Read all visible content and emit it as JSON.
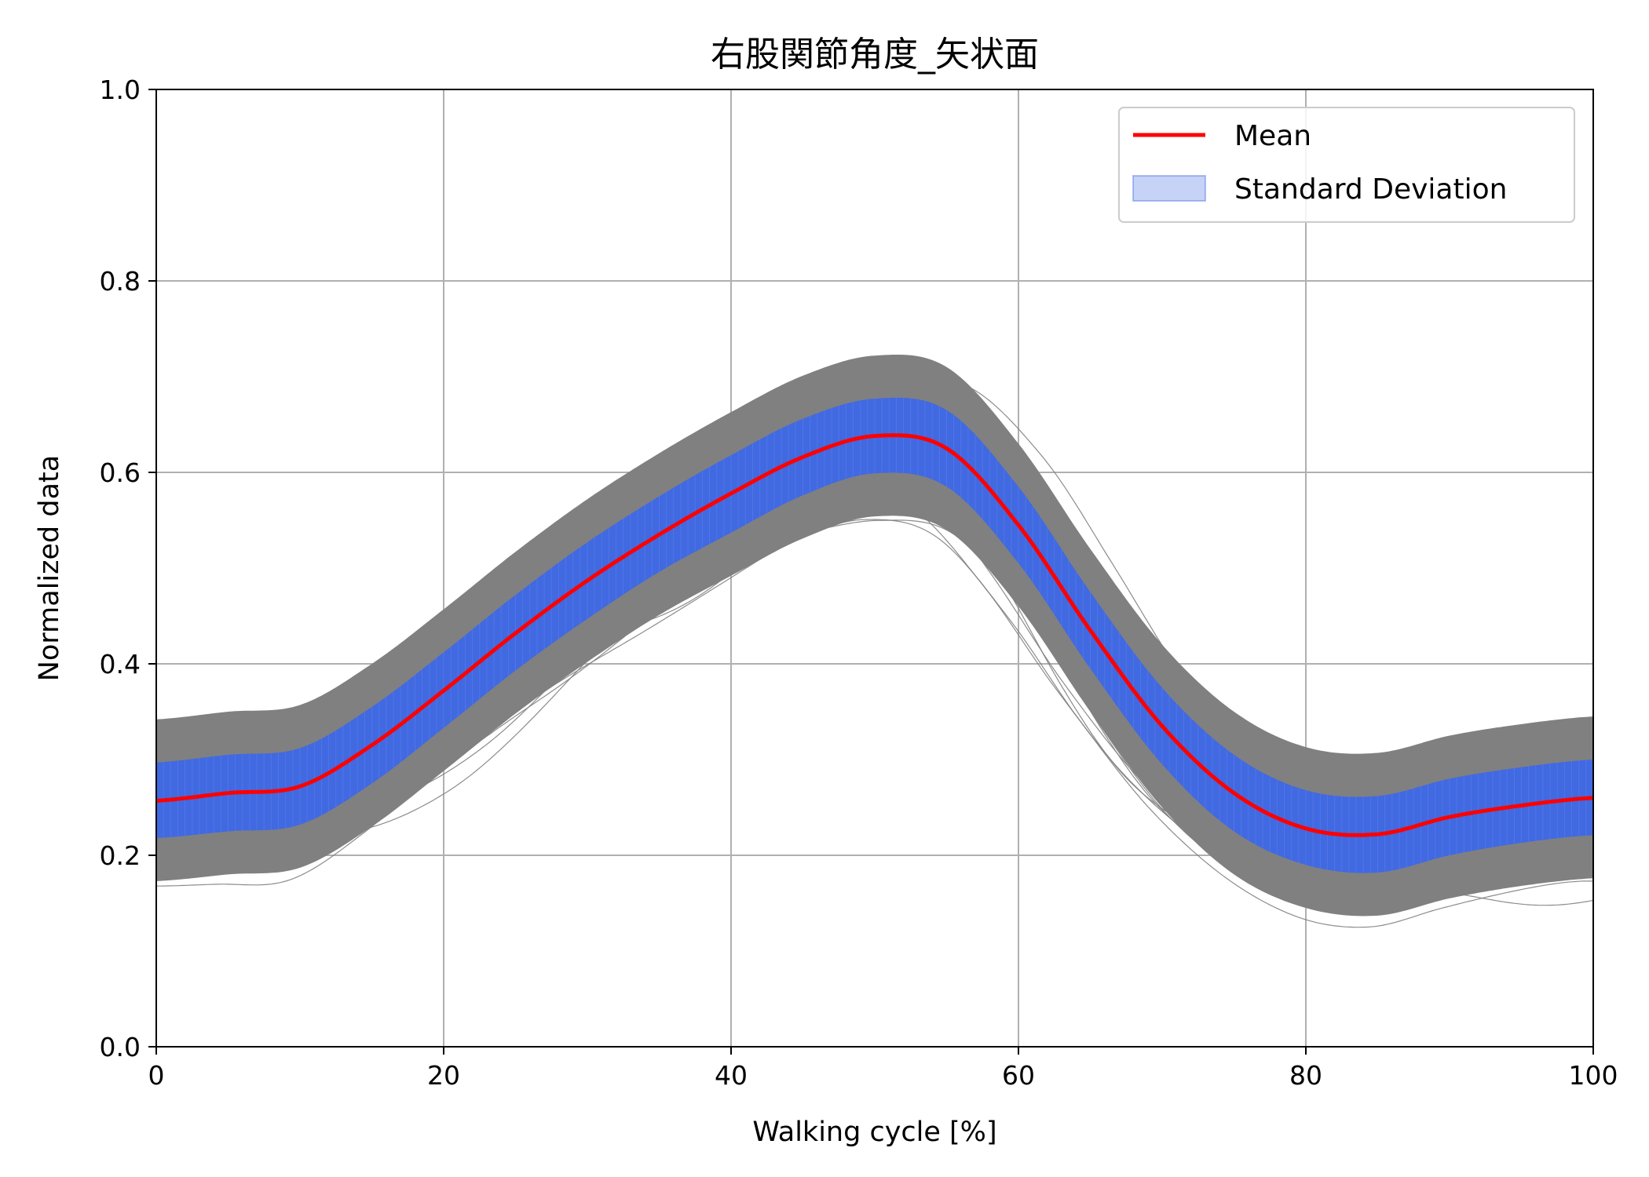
{
  "chart_data": {
    "type": "line",
    "title": "右股関節角度_矢状面",
    "xlabel": "Walking cycle [%]",
    "ylabel": "Normalized data",
    "xlim": [
      0,
      100
    ],
    "ylim": [
      0.0,
      1.0
    ],
    "xticks": [
      "0",
      "20",
      "40",
      "60",
      "80",
      "100"
    ],
    "yticks": [
      "0.0",
      "0.2",
      "0.4",
      "0.6",
      "0.8",
      "1.0"
    ],
    "grid": true,
    "legend": {
      "placement": "top-right",
      "entries": [
        {
          "label": "Mean",
          "color": "#ff0000",
          "kind": "line"
        },
        {
          "label": "Standard Deviation",
          "color": "#4169e1",
          "kind": "band"
        }
      ]
    },
    "x": [
      0,
      5,
      10,
      15,
      20,
      25,
      30,
      35,
      40,
      45,
      50,
      55,
      60,
      65,
      70,
      75,
      80,
      85,
      90,
      95,
      100
    ],
    "series": [
      {
        "name": "Mean",
        "color": "#ff0000",
        "values": [
          0.257,
          0.265,
          0.272,
          0.315,
          0.372,
          0.432,
          0.487,
          0.535,
          0.578,
          0.616,
          0.638,
          0.625,
          0.545,
          0.435,
          0.335,
          0.265,
          0.228,
          0.222,
          0.24,
          0.252,
          0.26
        ]
      }
    ],
    "std_band": {
      "color": "#4169e1",
      "lower": [
        0.218,
        0.225,
        0.232,
        0.275,
        0.333,
        0.393,
        0.447,
        0.496,
        0.537,
        0.576,
        0.599,
        0.585,
        0.505,
        0.395,
        0.295,
        0.225,
        0.19,
        0.182,
        0.2,
        0.213,
        0.221
      ],
      "upper": [
        0.297,
        0.305,
        0.312,
        0.355,
        0.412,
        0.472,
        0.527,
        0.575,
        0.618,
        0.656,
        0.677,
        0.665,
        0.585,
        0.475,
        0.375,
        0.305,
        0.268,
        0.262,
        0.28,
        0.292,
        0.3
      ]
    },
    "individual_trials": {
      "color": "#808080",
      "count_shown": 60
    }
  }
}
